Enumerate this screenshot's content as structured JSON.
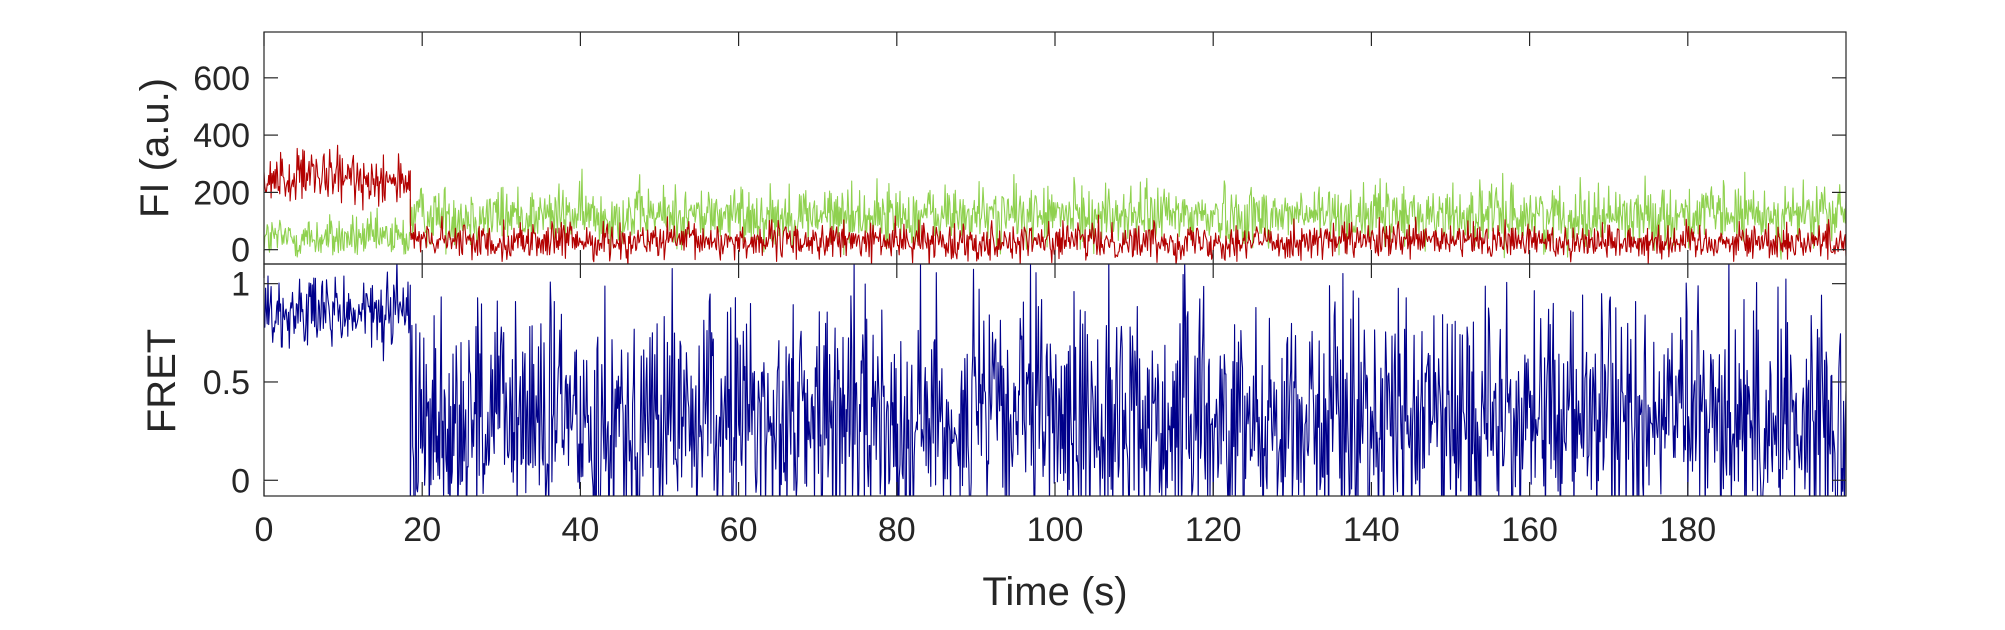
{
  "chart_data": [
    {
      "type": "line",
      "title": "",
      "ylabel": "FI (a.u.)",
      "xlabel": "",
      "xlim": [
        0,
        200
      ],
      "ylim": [
        -50,
        760
      ],
      "yticks": [
        0,
        200,
        400,
        600
      ],
      "ytick_labels": [
        "0",
        "200",
        "400",
        "600"
      ],
      "grid": false,
      "legend": "none",
      "series": [
        {
          "color": "#8fd14f",
          "segments": [
            {
              "x_start": 0,
              "x_end": 18.5,
              "mean": 40,
              "noise": 55
            },
            {
              "x_start": 18.5,
              "x_end": 200,
              "mean": 120,
              "noise": 75
            }
          ]
        },
        {
          "color": "#b30000",
          "segments": [
            {
              "x_start": 0,
              "x_end": 18.5,
              "mean": 250,
              "noise": 65
            },
            {
              "x_start": 18.5,
              "x_end": 200,
              "mean": 30,
              "noise": 45
            }
          ]
        }
      ]
    },
    {
      "type": "line",
      "title": "",
      "ylabel": "FRET",
      "xlabel": "Time (s)",
      "xlim": [
        0,
        200
      ],
      "ylim": [
        -0.08,
        1.1
      ],
      "yticks": [
        0,
        0.5,
        1
      ],
      "ytick_labels": [
        "0",
        "0.5",
        "1"
      ],
      "xticks": [
        0,
        20,
        40,
        60,
        80,
        100,
        120,
        140,
        160,
        180
      ],
      "xtick_labels": [
        "0",
        "20",
        "40",
        "60",
        "80",
        "100",
        "120",
        "140",
        "160",
        "180"
      ],
      "grid": false,
      "legend": "none",
      "series": [
        {
          "color": "#00008b",
          "segments": [
            {
              "x_start": 0,
              "x_end": 18.5,
              "mean": 0.85,
              "noise": 0.14
            },
            {
              "x_start": 18.5,
              "x_end": 200,
              "mean": 0.32,
              "noise": 0.42
            }
          ]
        }
      ]
    }
  ]
}
